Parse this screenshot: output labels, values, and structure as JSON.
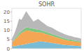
{
  "chart_data": {
    "type": "area",
    "title": "SOHR",
    "stacked": true,
    "categories": [
      null,
      null,
      null,
      null,
      null,
      null,
      null,
      null,
      null,
      null,
      null,
      null,
      null,
      null,
      null,
      null,
      null,
      null,
      null,
      null,
      null,
      null,
      null,
      null,
      null,
      null,
      null,
      null,
      null,
      null
    ],
    "series": [
      {
        "color": "#7abcd6",
        "values": [
          1.0,
          1.2,
          1.5,
          1.8,
          2.0,
          2.2,
          2.5,
          2.8,
          3.0,
          3.2,
          3.5,
          3.8,
          4.0,
          3.8,
          3.6,
          3.4,
          3.2,
          3.0,
          2.8,
          2.6,
          2.4,
          2.2,
          2.0,
          1.9,
          1.8,
          1.7,
          1.6,
          1.5,
          1.4,
          1.3
        ]
      },
      {
        "color": "#f5a655",
        "values": [
          2.5,
          3.5,
          4.5,
          5.5,
          6.5,
          7.0,
          7.5,
          7.0,
          6.5,
          6.0,
          5.5,
          5.0,
          4.8,
          4.6,
          4.4,
          4.2,
          4.0,
          3.8,
          3.6,
          3.4,
          3.2,
          3.0,
          2.8,
          2.6,
          2.5,
          2.4,
          2.3,
          2.2,
          2.1,
          2.0
        ]
      },
      {
        "color": "#7ec47e",
        "values": [
          0.3,
          0.5,
          0.8,
          1.0,
          1.2,
          1.4,
          1.5,
          1.6,
          1.7,
          1.6,
          1.5,
          1.4,
          1.3,
          1.2,
          1.2,
          1.1,
          1.1,
          1.0,
          1.0,
          0.9,
          0.9,
          0.8,
          0.8,
          0.7,
          0.7,
          0.7,
          0.6,
          0.6,
          0.6,
          0.5
        ]
      },
      {
        "color": "#b8b8b8",
        "values": [
          1.5,
          3.0,
          5.0,
          8.0,
          6.0,
          7.5,
          9.0,
          7.0,
          5.5,
          4.0,
          5.0,
          6.0,
          5.0,
          4.5,
          4.0,
          3.5,
          3.5,
          3.5,
          3.0,
          2.8,
          2.5,
          2.5,
          2.3,
          2.2,
          2.0,
          1.9,
          1.8,
          1.8,
          1.7,
          1.6
        ]
      }
    ],
    "ylim": [
      0,
      22
    ],
    "yticks": [
      0,
      5,
      10,
      15,
      20
    ],
    "grid": false,
    "tick_labels": "y"
  }
}
